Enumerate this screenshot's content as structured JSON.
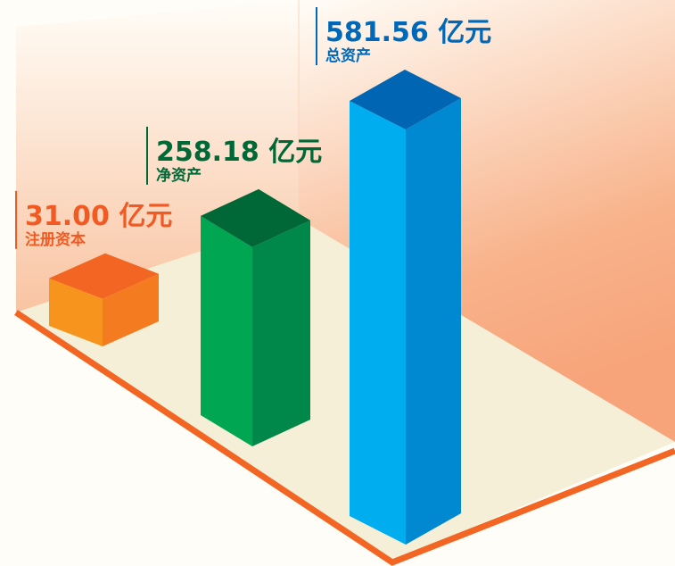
{
  "chart_data": {
    "type": "bar3d",
    "categories": [
      "注册资本",
      "净资产",
      "总资产"
    ],
    "values": [
      31.0,
      258.18,
      581.56
    ],
    "value_labels": [
      "31.00 亿元",
      "258.18 亿元",
      "581.56 亿元"
    ],
    "colors": [
      "#f7941d",
      "#00a651",
      "#00aeef"
    ]
  }
}
